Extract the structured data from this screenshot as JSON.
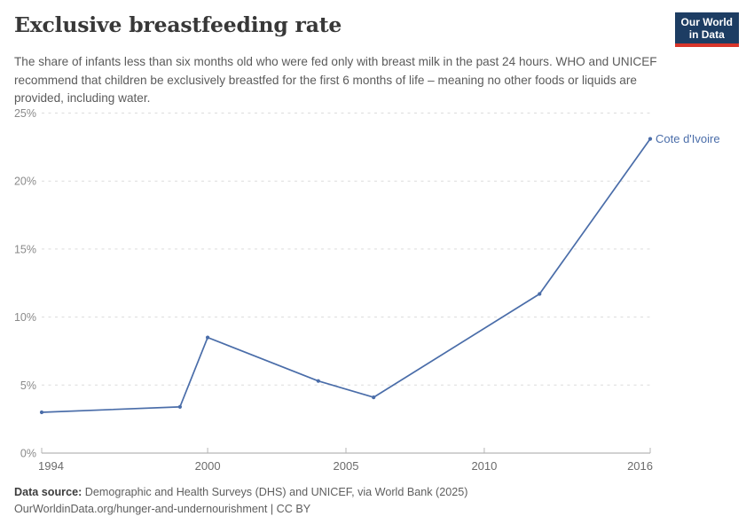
{
  "header": {
    "title": "Exclusive breastfeeding rate",
    "subtitle": "The share of infants less than six months old who were fed only with breast milk in the past 24 hours. WHO and UNICEF recommend that children be exclusively breastfed for the first 6 months of life – meaning no other foods or liquids are provided, including water."
  },
  "logo": {
    "line1": "Our World",
    "line2": "in Data",
    "bg_color": "#1d3d63",
    "bar_color": "#d8352a",
    "text_color": "#ffffff"
  },
  "chart_data": {
    "type": "line",
    "title": "Exclusive breastfeeding rate",
    "series": [
      {
        "name": "Cote d'Ivoire",
        "color": "#4a6da9",
        "x": [
          1994,
          1999,
          2000,
          2004,
          2006,
          2012,
          2016
        ],
        "values": [
          3.0,
          3.4,
          8.5,
          5.3,
          4.1,
          11.7,
          23.1
        ]
      }
    ],
    "end_label": "Cote d'Ivoire",
    "xlim": [
      1994,
      2016
    ],
    "ylim": [
      0,
      25
    ],
    "xticks": [
      1994,
      2000,
      2005,
      2010,
      2016
    ],
    "yticks": [
      0,
      5,
      10,
      15,
      20,
      25
    ],
    "ytick_suffix": "%",
    "grid": "horizontal-dashed",
    "legend_position": "end-of-line-label",
    "colors": {
      "grid": "#dcdcdc",
      "axis": "#a3a3a3",
      "tick": "#b5b5b5",
      "xtick_label": "#6b6b6b",
      "ytick_label": "#8a8a8a"
    }
  },
  "footer": {
    "source_label": "Data source:",
    "source_text": " Demographic and Health Surveys (DHS) and UNICEF, via World Bank (2025)",
    "link_text": "OurWorldinData.org/hunger-and-undernourishment",
    "license_text": " | CC BY"
  }
}
